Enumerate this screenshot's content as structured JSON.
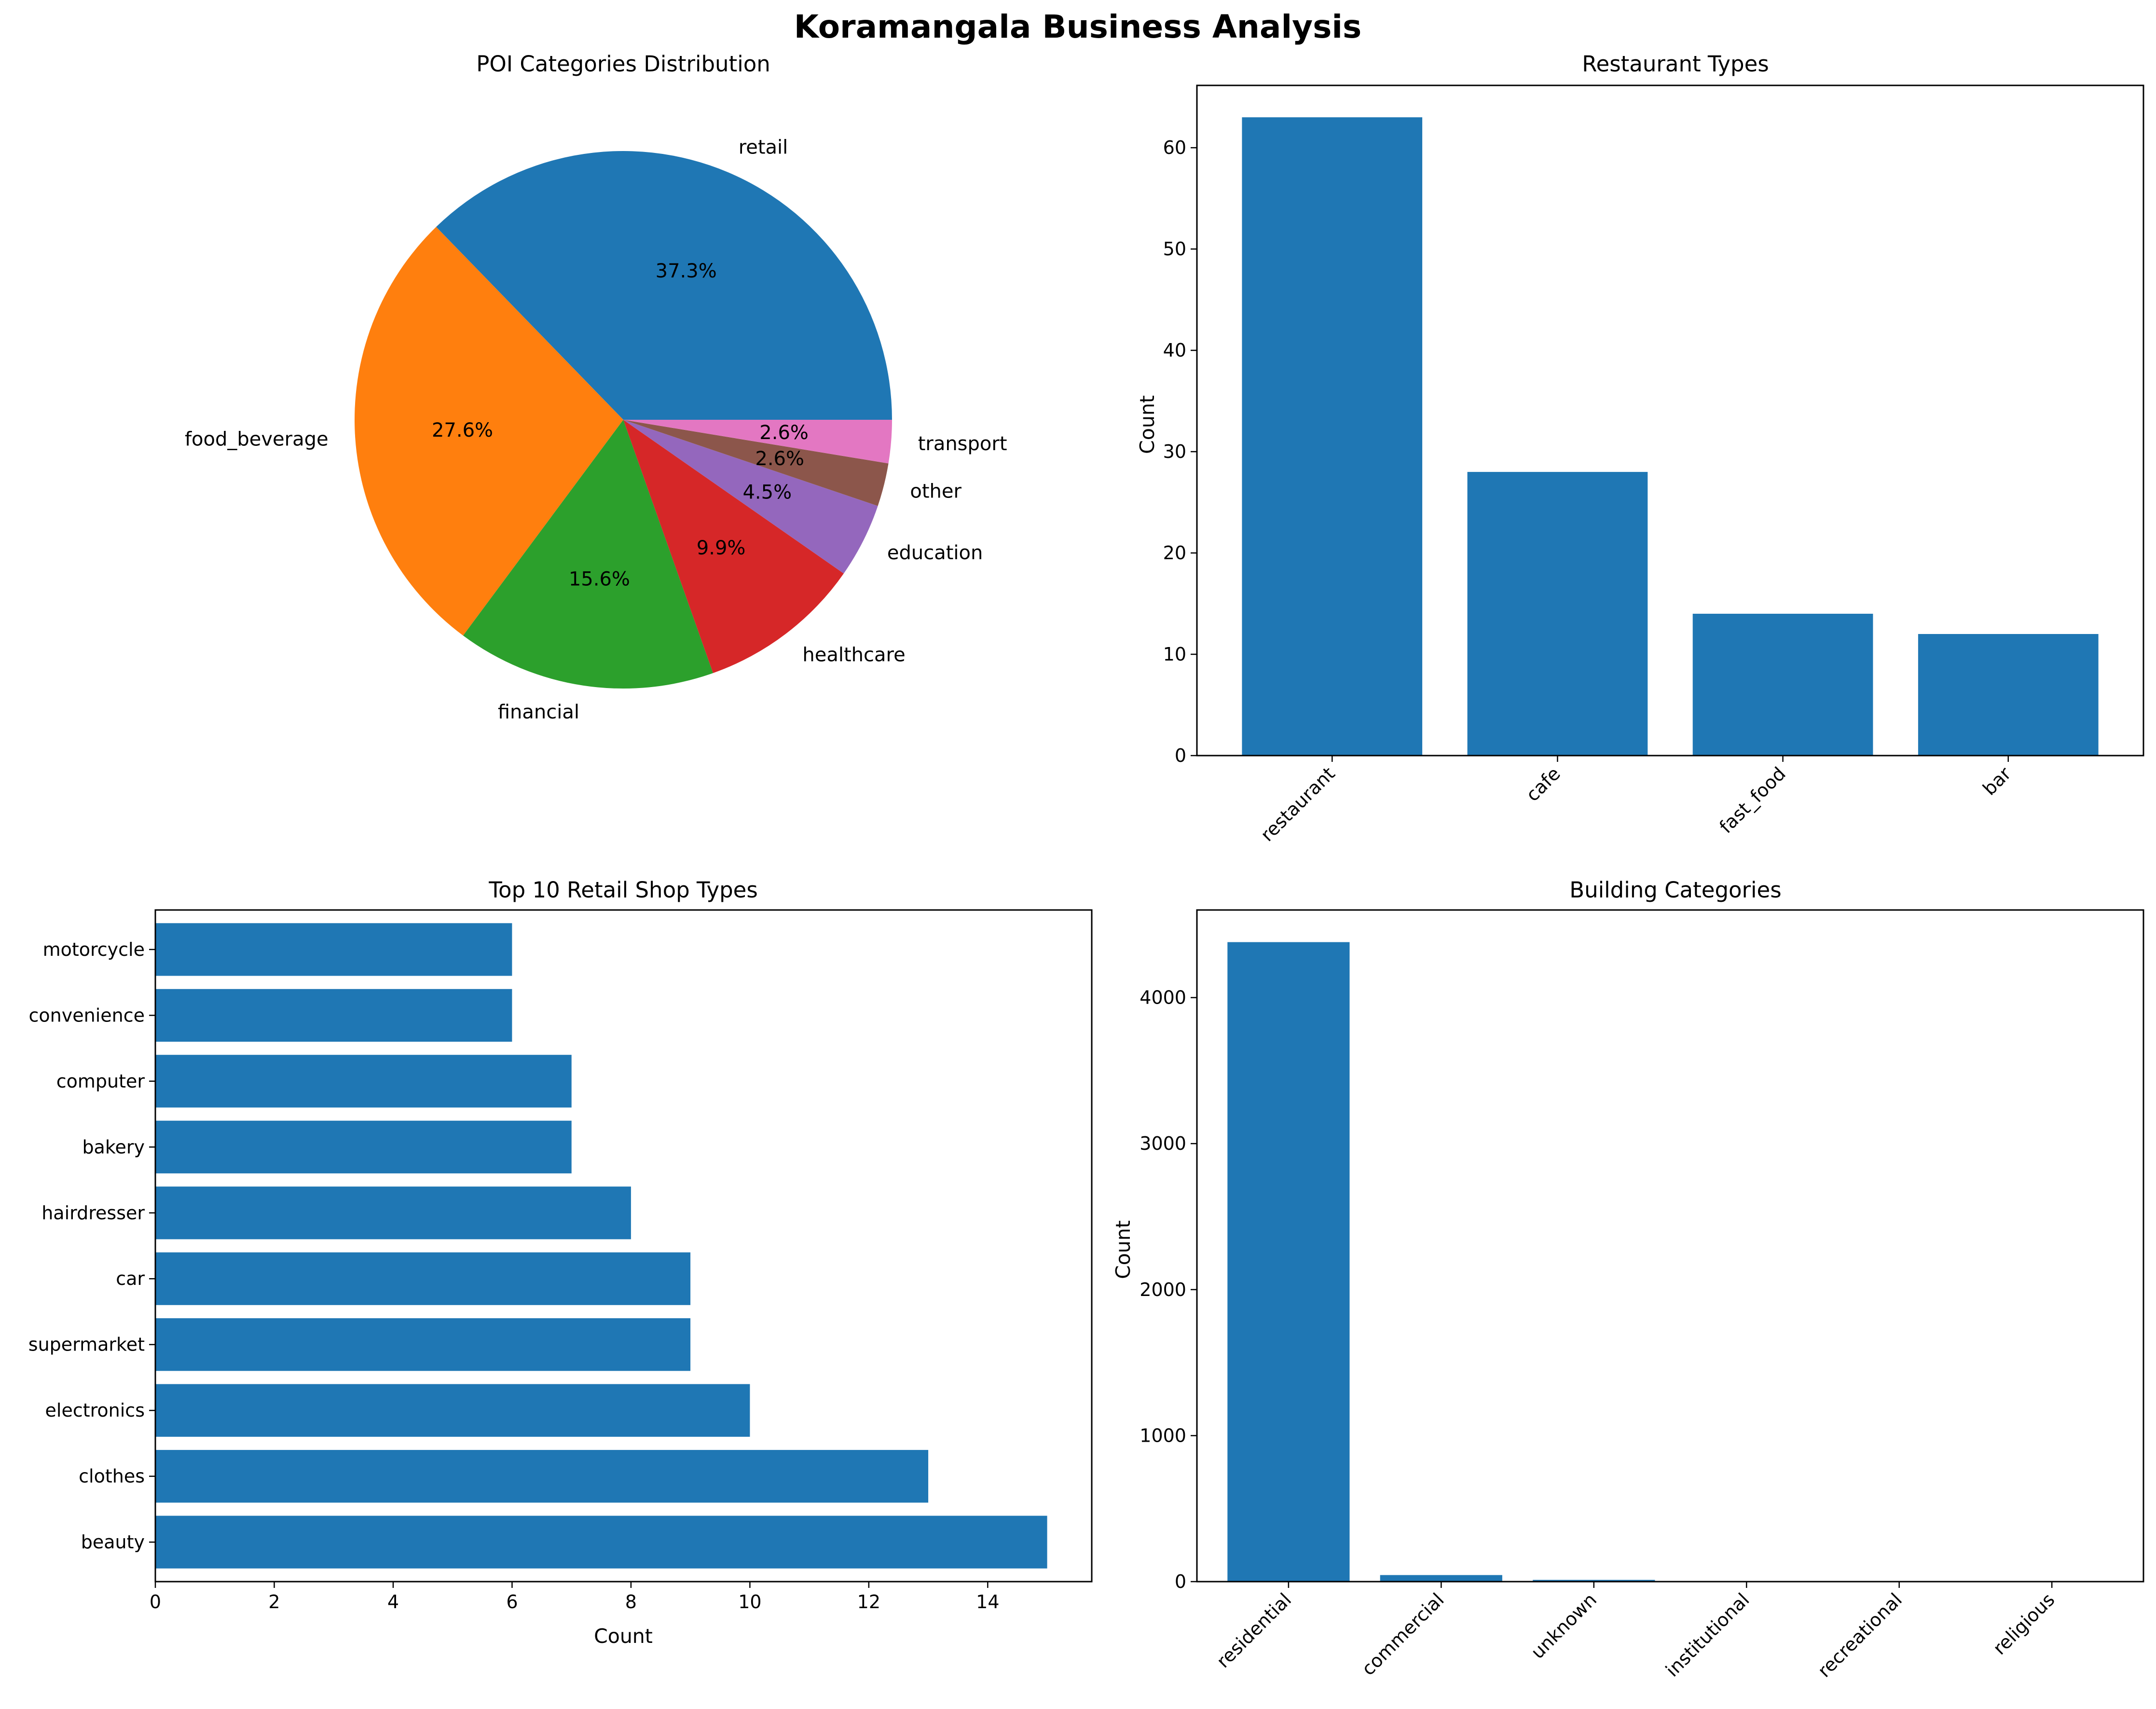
{
  "figure": {
    "title": "Koramangala Business Analysis",
    "bar_color": "#1f77b4"
  },
  "chart_data": [
    {
      "type": "pie",
      "title": "POI Categories Distribution",
      "labels": [
        "retail",
        "food_beverage",
        "financial",
        "healthcare",
        "education",
        "other",
        "transport"
      ],
      "values": [
        37.3,
        27.6,
        15.6,
        9.9,
        4.5,
        2.6,
        2.6
      ],
      "percent_labels": [
        "37.3%",
        "27.6%",
        "15.6%",
        "9.9%",
        "4.5%",
        "2.6%",
        "2.6%"
      ],
      "colors": [
        "#1f77b4",
        "#ff7f0e",
        "#2ca02c",
        "#d62728",
        "#9467bd",
        "#8c564b",
        "#e377c2"
      ]
    },
    {
      "type": "bar",
      "title": "Restaurant Types",
      "categories": [
        "restaurant",
        "cafe",
        "fast_food",
        "bar"
      ],
      "values": [
        63,
        28,
        14,
        12
      ],
      "xlabel": "",
      "ylabel": "Count",
      "ylim": [
        0,
        66.15
      ],
      "yticks": [
        0,
        10,
        20,
        30,
        40,
        50,
        60
      ],
      "grid": false
    },
    {
      "type": "bar",
      "orientation": "horizontal",
      "title": "Top 10 Retail Shop Types",
      "categories": [
        "beauty",
        "clothes",
        "electronics",
        "supermarket",
        "car",
        "hairdresser",
        "bakery",
        "computer",
        "convenience",
        "motorcycle"
      ],
      "values": [
        15,
        13,
        10,
        9,
        9,
        8,
        7,
        7,
        6,
        6
      ],
      "xlabel": "Count",
      "ylabel": "",
      "xlim": [
        0,
        15.75
      ],
      "xticks": [
        0,
        2,
        4,
        6,
        8,
        10,
        12,
        14
      ],
      "grid": false
    },
    {
      "type": "bar",
      "title": "Building Categories",
      "categories": [
        "residential",
        "commercial",
        "unknown",
        "institutional",
        "recreational",
        "religious"
      ],
      "values": [
        4380,
        45,
        12,
        3,
        2,
        1
      ],
      "xlabel": "",
      "ylabel": "Count",
      "ylim": [
        0,
        4600
      ],
      "yticks": [
        0,
        1000,
        2000,
        3000,
        4000
      ],
      "grid": false
    }
  ]
}
